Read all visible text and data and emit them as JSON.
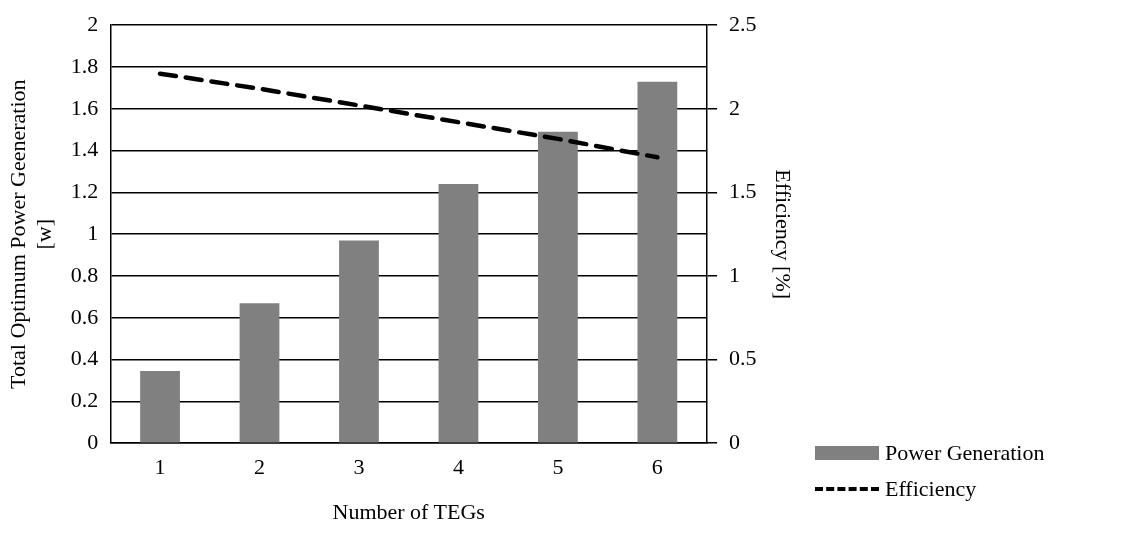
{
  "chart_data": {
    "type": "bar",
    "xlabel": "Number of TEGs",
    "ylabel": "Total Optimum Power Geeneration [w]",
    "y2label": "Efficiency [%]",
    "categories": [
      "1",
      "2",
      "3",
      "4",
      "5",
      "6"
    ],
    "series": [
      {
        "name": "Power Generation",
        "color": "#808080",
        "values": [
          0.345,
          0.67,
          0.97,
          1.24,
          1.49,
          1.73
        ]
      },
      {
        "name": "Efficiency",
        "type": "line",
        "axis": "y2",
        "color": "#000000",
        "line_style": "dashed",
        "marker": "none",
        "values": [
          2.21,
          2.12,
          2.02,
          1.92,
          1.82,
          1.71
        ]
      }
    ],
    "ylim": [
      0,
      2
    ],
    "yticks": [
      0,
      0.2,
      0.4,
      0.6,
      0.8,
      1,
      1.2,
      1.4,
      1.6,
      1.8,
      2
    ],
    "y2lim": [
      0,
      2.5
    ],
    "y2ticks": [
      0,
      0.5,
      1,
      1.5,
      2,
      2.5
    ],
    "grid": "y",
    "legend": "bottom right"
  }
}
